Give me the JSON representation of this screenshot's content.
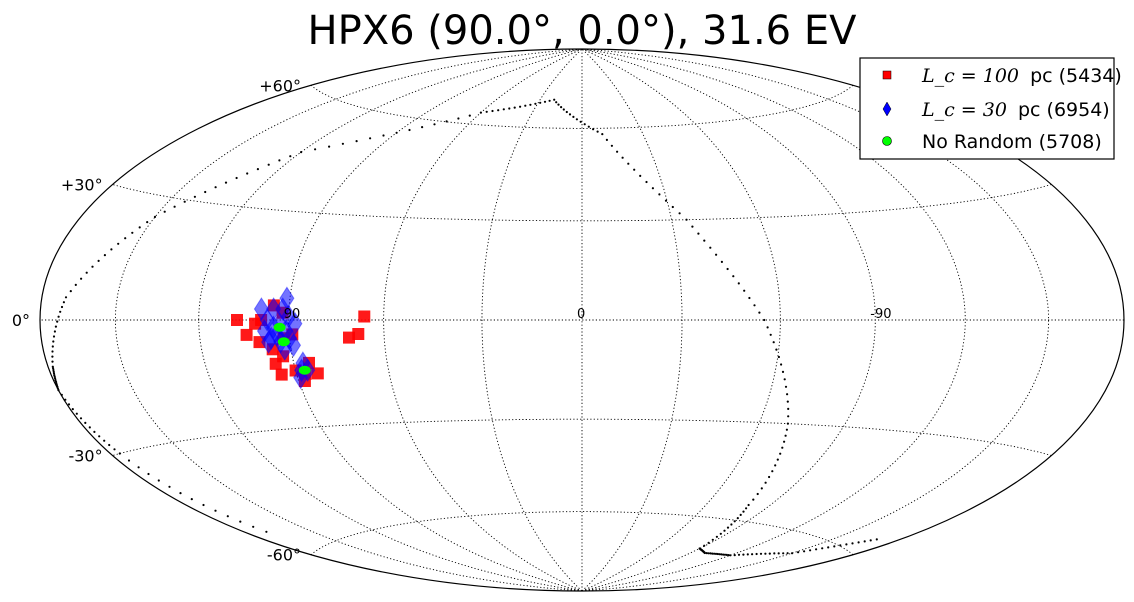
{
  "chart_data": {
    "type": "scatter",
    "projection": "aitoff-hammer (all-sky ellipse)",
    "title": "HPX6 (90.0°, 0.0°), 31.6 EV",
    "lat_ticks": [
      {
        "lat": 60,
        "label": "+60°"
      },
      {
        "lat": 30,
        "label": "+30°"
      },
      {
        "lat": 0,
        "label": "0°"
      },
      {
        "lat": -30,
        "label": "-30°"
      },
      {
        "lat": -60,
        "label": "-60°"
      }
    ],
    "lon_ticks": [
      {
        "lon": 90,
        "label": "90"
      },
      {
        "lon": 0,
        "label": "0"
      },
      {
        "lon": -90,
        "label": "-90"
      }
    ],
    "grid": true,
    "legend_position": "top-right",
    "series": [
      {
        "name_math": "L_c = 100",
        "name_text": "pc (5434)",
        "marker": "square",
        "color": "#ff0000",
        "points": [
          [
            95,
            4
          ],
          [
            92,
            2
          ],
          [
            101,
            -1
          ],
          [
            107,
            0
          ],
          [
            104,
            -4
          ],
          [
            100,
            -6
          ],
          [
            96,
            -8
          ],
          [
            92,
            -5
          ],
          [
            96,
            -12
          ],
          [
            90,
            -14
          ],
          [
            95,
            -15
          ],
          [
            87,
            -15
          ],
          [
            83,
            -15
          ],
          [
            88,
            -17
          ],
          [
            99,
            0
          ],
          [
            89,
            -4
          ],
          [
            66,
            1
          ],
          [
            68,
            -4
          ],
          [
            71,
            -5
          ],
          [
            93,
            -10
          ],
          [
            85,
            -12
          ]
        ]
      },
      {
        "name_math": "L_c = 30",
        "name_text": "pc (6954)",
        "marker": "diamond",
        "color": "#0000ff",
        "points": [
          [
            97,
            0
          ],
          [
            95,
            -2
          ],
          [
            93,
            -1
          ],
          [
            91,
            -3
          ],
          [
            98,
            -3
          ],
          [
            96,
            -5
          ],
          [
            93,
            -6
          ],
          [
            90,
            -5
          ],
          [
            94,
            -4
          ],
          [
            92,
            3
          ],
          [
            90,
            1
          ],
          [
            88,
            -1
          ],
          [
            89,
            -7
          ],
          [
            97,
            -6
          ],
          [
            86,
            -14
          ],
          [
            88,
            -14
          ],
          [
            89,
            -16
          ],
          [
            91,
            6
          ],
          [
            99,
            3
          ],
          [
            92,
            -8
          ],
          [
            87,
            -12
          ],
          [
            95,
            3
          ]
        ]
      },
      {
        "name_math": "",
        "name_text": "No Random (5708)",
        "marker": "circle",
        "color": "#00ff00",
        "points": [
          [
            93,
            -2
          ],
          [
            92,
            -6
          ],
          [
            87,
            -14
          ]
        ]
      }
    ],
    "galactic_plane_curve": [
      [
        -170,
        -56
      ],
      [
        -150,
        -65
      ],
      [
        -120,
        -70
      ],
      [
        -100,
        -71
      ],
      [
        -90,
        -70
      ],
      [
        -80,
        -55
      ],
      [
        -70,
        -30
      ],
      [
        -55,
        0
      ],
      [
        -35,
        30
      ],
      [
        -10,
        58
      ],
      [
        20,
        70
      ],
      [
        60,
        64
      ],
      [
        120,
        46
      ],
      [
        150,
        25
      ],
      [
        170,
        5
      ],
      [
        178,
        -10
      ],
      [
        180,
        -15
      ],
      [
        176,
        -30
      ],
      [
        170,
        -55
      ]
    ]
  }
}
